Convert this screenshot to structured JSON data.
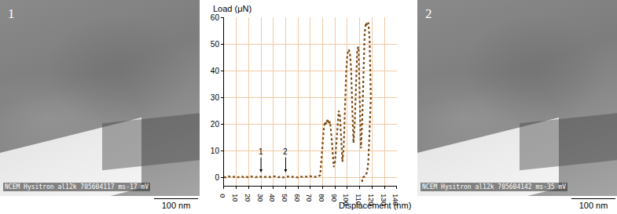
{
  "chart_data": {
    "type": "line",
    "x_label": "Displacement (nm)",
    "y_label": "Load (μN)",
    "series": [
      {
        "name": "Load",
        "color": "#7a4a14",
        "line_style": "dotted",
        "x": [
          0,
          2,
          4,
          6,
          8,
          10,
          12,
          14,
          16,
          18,
          20,
          22,
          24,
          26,
          28,
          30,
          32,
          34,
          36,
          38,
          40,
          42,
          44,
          46,
          48,
          50,
          52,
          54,
          56,
          58,
          60,
          62,
          64,
          66,
          68,
          70,
          72,
          74,
          76,
          78,
          79,
          80,
          81,
          82,
          83,
          84,
          85,
          86,
          87,
          88,
          89,
          90,
          91,
          92,
          93,
          94,
          95,
          96,
          97,
          98,
          99,
          100,
          101,
          102,
          103,
          104,
          105,
          106,
          107,
          108,
          109,
          110,
          111,
          112,
          113,
          114,
          115,
          116,
          117,
          118,
          119,
          118,
          117,
          116,
          114,
          112,
          112,
          112
        ],
        "values": [
          0.3,
          0,
          0.5,
          0.2,
          0.4,
          0,
          0.3,
          0.6,
          0.2,
          0.4,
          0.1,
          0.5,
          0.3,
          0.2,
          0.6,
          0.3,
          0.1,
          0.4,
          0.5,
          0.2,
          0.3,
          0.6,
          0.2,
          0.4,
          0.1,
          0.3,
          0.5,
          0.2,
          0.4,
          0.3,
          0.1,
          0.5,
          0.2,
          0.4,
          0.3,
          0.6,
          0.2,
          0.4,
          0.3,
          1,
          6,
          13,
          19,
          21,
          20,
          22,
          20,
          21,
          16,
          9,
          4,
          6,
          13,
          21,
          25,
          23,
          13,
          6,
          11,
          26,
          39,
          46,
          48,
          47,
          41,
          26,
          13,
          21,
          36,
          48,
          49,
          31,
          11,
          21,
          41,
          54,
          58,
          57,
          58,
          52,
          30,
          15,
          6,
          2,
          0.5,
          0,
          -1,
          -2
        ]
      }
    ],
    "xlim": [
      0,
      140
    ],
    "xticks": [
      0,
      10,
      20,
      30,
      40,
      50,
      60,
      70,
      80,
      90,
      100,
      110,
      120,
      130,
      140
    ],
    "ylim": [
      -3,
      60
    ],
    "yticks": [
      0,
      10,
      20,
      30,
      40,
      50,
      60
    ],
    "grid": true,
    "annotations": [
      {
        "text": "1",
        "x": 30,
        "y": 2
      },
      {
        "text": "2",
        "x": 50,
        "y": 2
      }
    ]
  },
  "images": [
    {
      "label": "1",
      "caption": "NCEM Hysitron al12k 705604117 ms-17 mV",
      "scale_bar": "100 nm"
    },
    {
      "label": "2",
      "caption": "NCEM Hysitron al12k 705604142 ms-35 mV",
      "scale_bar": "100 nm"
    }
  ]
}
